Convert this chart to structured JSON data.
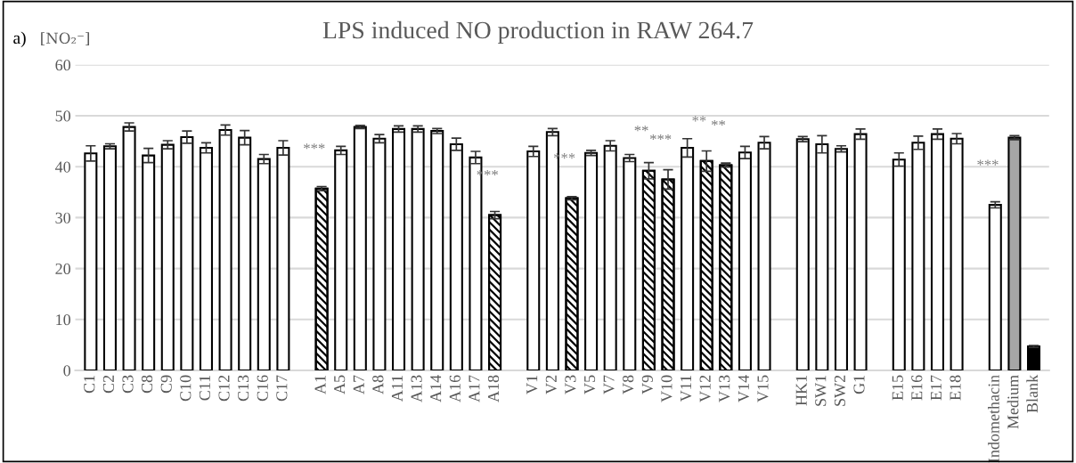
{
  "chart_data": {
    "type": "bar",
    "title": "LPS induced NO production in RAW 264.7",
    "ylabel": "[NO₂⁻]",
    "annotations": [
      "a)",
      {
        "text": "***",
        "x": "A1",
        "y": 35.7
      },
      {
        "text": "***",
        "x": "A18",
        "y": 30.5
      },
      {
        "text": "***",
        "x": "V3",
        "y": 33.8
      },
      {
        "text": "**",
        "x": "V9",
        "y": 39.2
      },
      {
        "text": "***",
        "x": "V10",
        "y": 37.5
      },
      {
        "text": "**",
        "x": "V12",
        "y": 41.1
      },
      {
        "text": "**",
        "x": "V13",
        "y": 40.3
      },
      {
        "text": "***",
        "x": "Indomethacin",
        "y": 32.5
      }
    ],
    "categories": [
      "C1",
      "C2",
      "C3",
      "C8",
      "C9",
      "C10",
      "C11",
      "C12",
      "C13",
      "C16",
      "C17",
      null,
      "A1",
      "A5",
      "A7",
      "A8",
      "A11",
      "A13",
      "A14",
      "A16",
      "A17",
      "A18",
      null,
      "V1",
      "V2",
      "V3",
      "V5",
      "V7",
      "V8",
      "V9",
      "V10",
      "V11",
      "V12",
      "V13",
      "V14",
      "V15",
      null,
      "HK1",
      "SW1",
      "SW2",
      "G1",
      null,
      "E15",
      "E16",
      "E17",
      "E18",
      null,
      "Indomethacin",
      "Medium",
      "Blank"
    ],
    "series": [
      {
        "colors": [
          "#ffffff",
          "#ffffff",
          "#ffffff",
          "#ffffff",
          "#ffffff",
          "#ffffff",
          "#ffffff",
          "#ffffff",
          "#ffffff",
          "#ffffff",
          "#ffffff",
          null,
          null,
          "#ffffff",
          "#ffffff",
          "#ffffff",
          "#ffffff",
          "#ffffff",
          "#ffffff",
          "#ffffff",
          "#ffffff",
          null,
          null,
          "#ffffff",
          "#ffffff",
          null,
          "#ffffff",
          "#ffffff",
          "#ffffff",
          null,
          null,
          "#ffffff",
          null,
          null,
          "#ffffff",
          "#ffffff",
          null,
          "#ffffff",
          "#ffffff",
          "#ffffff",
          "#ffffff",
          null,
          "#ffffff",
          "#ffffff",
          "#ffffff",
          "#ffffff",
          null,
          "#ffffff",
          "#a6a6a6",
          "#000000"
        ],
        "values": [
          42.6,
          44.0,
          47.8,
          42.2,
          44.3,
          45.8,
          43.7,
          47.2,
          45.7,
          41.5,
          43.7,
          null,
          null,
          43.2,
          47.8,
          45.5,
          47.4,
          47.4,
          47.0,
          44.4,
          41.8,
          null,
          null,
          43.0,
          46.8,
          null,
          42.7,
          44.1,
          41.7,
          null,
          null,
          43.7,
          null,
          null,
          42.8,
          44.7,
          null,
          45.4,
          44.4,
          43.5,
          46.4,
          null,
          41.4,
          44.7,
          46.4,
          45.5,
          null,
          32.5,
          45.7,
          4.7
        ],
        "errors": [
          1.5,
          0.5,
          0.8,
          1.4,
          0.8,
          1.2,
          1.0,
          1.0,
          1.4,
          0.9,
          1.4,
          null,
          null,
          0.8,
          0.3,
          0.8,
          0.6,
          0.6,
          0.5,
          1.2,
          1.2,
          null,
          null,
          1.0,
          0.7,
          null,
          0.5,
          1.0,
          0.7,
          null,
          null,
          1.8,
          null,
          null,
          1.2,
          1.2,
          null,
          0.5,
          1.7,
          0.6,
          1.0,
          null,
          1.3,
          1.3,
          1.0,
          1.0,
          null,
          0.6,
          0.4,
          0.2
        ]
      },
      {
        "color": "#000000",
        "values": [
          null,
          null,
          null,
          null,
          null,
          null,
          null,
          null,
          null,
          null,
          null,
          null,
          35.7,
          null,
          null,
          null,
          null,
          null,
          null,
          null,
          null,
          30.5,
          null,
          null,
          null,
          33.8,
          null,
          null,
          null,
          39.2,
          37.5,
          null,
          41.1,
          40.3,
          null,
          null,
          null,
          null,
          null,
          null,
          null,
          null,
          null,
          null,
          null,
          null,
          null,
          null,
          null,
          null
        ],
        "errors": [
          null,
          null,
          null,
          null,
          null,
          null,
          null,
          null,
          null,
          null,
          null,
          null,
          0.4,
          null,
          null,
          null,
          null,
          null,
          null,
          null,
          null,
          0.7,
          null,
          null,
          null,
          0.3,
          null,
          null,
          null,
          1.6,
          1.9,
          null,
          2.0,
          0.4,
          null,
          null,
          null,
          null,
          null,
          null,
          null,
          null,
          null,
          null,
          null,
          null,
          null,
          null,
          null,
          null
        ]
      }
    ],
    "ylim": [
      0,
      60
    ],
    "yticks": [
      0,
      10,
      20,
      30,
      40,
      50,
      60
    ],
    "grid": "y",
    "legend": false
  }
}
